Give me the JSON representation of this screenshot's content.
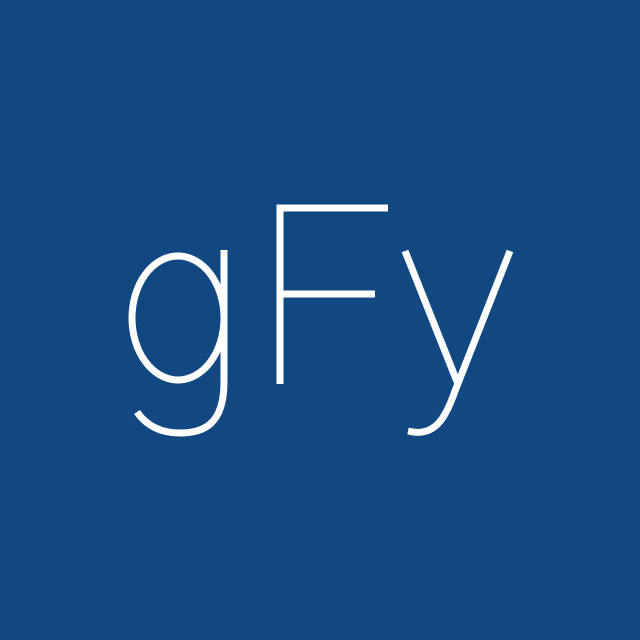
{
  "avatar": {
    "text": "gFy",
    "background_color": "#124882",
    "text_color": "#ffffff"
  }
}
